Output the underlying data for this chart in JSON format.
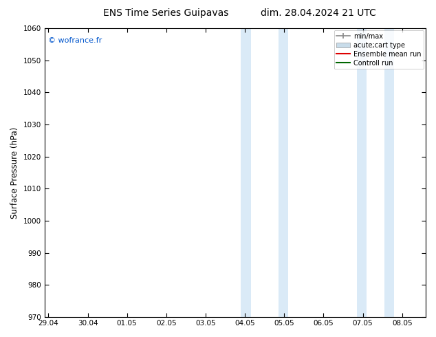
{
  "title_left": "ENS Time Series Guipavas",
  "title_right": "dim. 28.04.2024 21 UTC",
  "ylabel": "Surface Pressure (hPa)",
  "ylim": [
    970,
    1060
  ],
  "yticks": [
    970,
    980,
    990,
    1000,
    1010,
    1020,
    1030,
    1040,
    1050,
    1060
  ],
  "xtick_labels": [
    "29.04",
    "30.04",
    "01.05",
    "02.05",
    "03.05",
    "04.05",
    "05.05",
    "06.05",
    "07.05",
    "08.05"
  ],
  "xtick_positions": [
    0,
    1,
    2,
    3,
    4,
    5,
    6,
    7,
    8,
    9
  ],
  "xlim": [
    -0.1,
    9.6
  ],
  "shaded_regions": [
    {
      "xmin": 4.9,
      "xmax": 5.15,
      "color": "#daeaf7"
    },
    {
      "xmin": 5.85,
      "xmax": 6.1,
      "color": "#daeaf7"
    },
    {
      "xmin": 7.85,
      "xmax": 8.1,
      "color": "#daeaf7"
    },
    {
      "xmin": 8.55,
      "xmax": 8.8,
      "color": "#daeaf7"
    }
  ],
  "watermark_text": "© wofrance.fr",
  "watermark_color": "#0055cc",
  "background_color": "#ffffff",
  "plot_bg_color": "#ffffff",
  "legend_entries": [
    {
      "label": "min/max",
      "color": "#888888",
      "lw": 1.2,
      "type": "line_with_caps"
    },
    {
      "label": "acute;cart type",
      "color": "#c8dcea",
      "lw": 6,
      "type": "patch"
    },
    {
      "label": "Ensemble mean run",
      "color": "#dd0000",
      "lw": 1.5,
      "type": "line"
    },
    {
      "label": "Controll run",
      "color": "#006600",
      "lw": 1.5,
      "type": "line"
    }
  ],
  "title_fontsize": 10,
  "tick_fontsize": 7.5,
  "ylabel_fontsize": 8.5
}
